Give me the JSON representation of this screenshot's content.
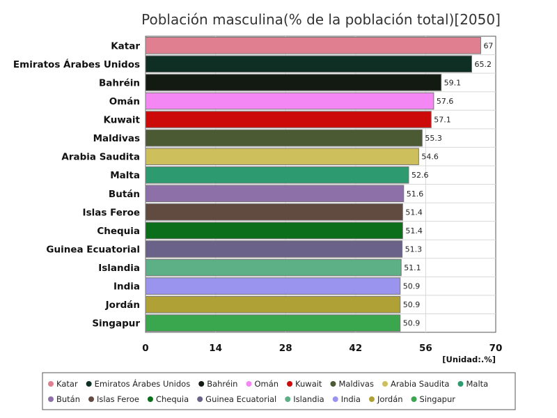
{
  "chart_data": {
    "type": "bar",
    "orientation": "horizontal",
    "title": "Población masculina(% de la población total)[2050]",
    "unit": "[Unidad:.%]",
    "xlim": [
      0,
      70
    ],
    "xticks": [
      "0",
      "14",
      "28",
      "42",
      "56",
      "70"
    ],
    "grid": true,
    "legend_position": "bottom",
    "categories": [
      "Katar",
      "Emiratos Árabes Unidos",
      "Bahréin",
      "Omán",
      "Kuwait",
      "Maldivas",
      "Arabia Saudita",
      "Malta",
      "Bután",
      "Islas Feroe",
      "Chequia",
      "Guinea Ecuatorial",
      "Islandia",
      "India",
      "Jordán",
      "Singapur"
    ],
    "values": [
      67,
      65.2,
      59.1,
      57.6,
      57.1,
      55.3,
      54.6,
      52.6,
      51.6,
      51.4,
      51.4,
      51.3,
      51.1,
      50.9,
      50.9,
      50.9
    ],
    "value_labels": [
      "67",
      "65.2",
      "59.1",
      "57.6",
      "57.1",
      "55.3",
      "54.6",
      "52.6",
      "51.6",
      "51.4",
      "51.4",
      "51.3",
      "51.1",
      "50.9",
      "50.9",
      "50.9"
    ],
    "colors": [
      "#e07f8f",
      "#0f2f25",
      "#121a12",
      "#f587f5",
      "#cc0a0a",
      "#4b5a33",
      "#cdbf5c",
      "#2e9a70",
      "#8e70a8",
      "#614a40",
      "#0a6e1a",
      "#6a6288",
      "#5daf85",
      "#9a94ee",
      "#b0a136",
      "#3aa64e"
    ]
  }
}
